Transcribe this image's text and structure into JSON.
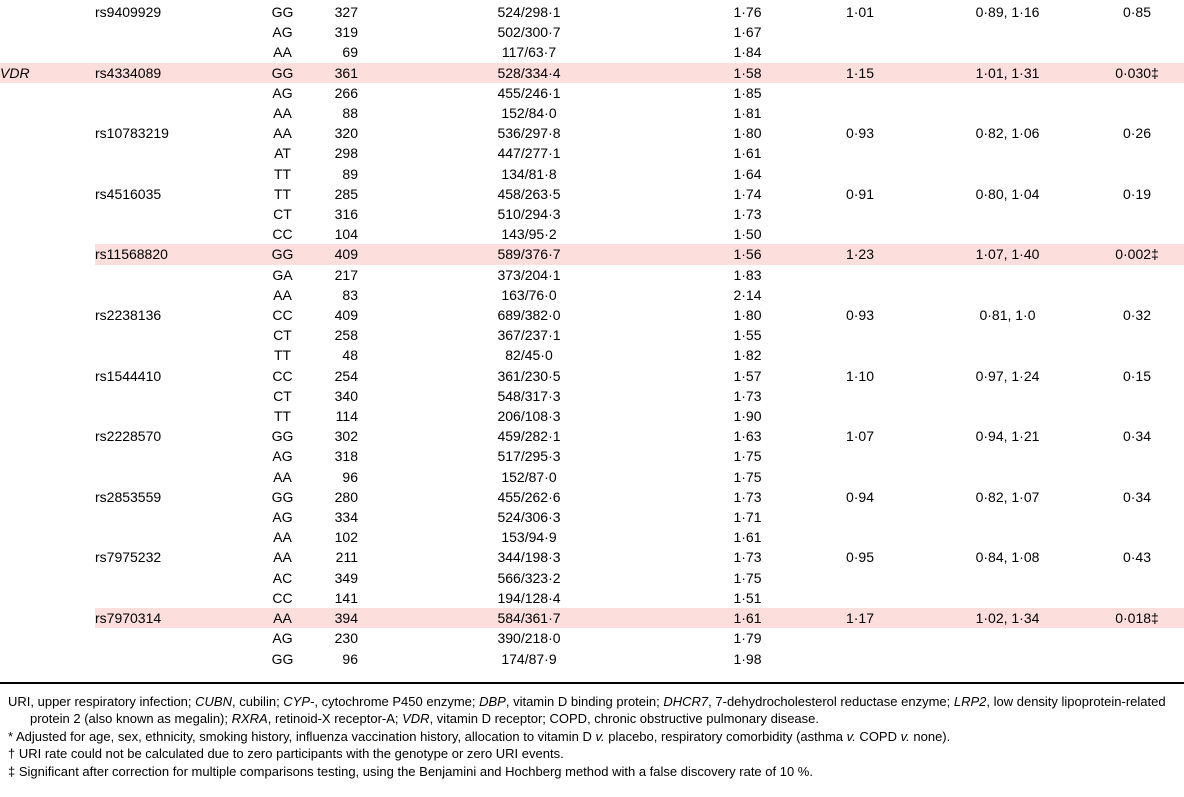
{
  "page": {
    "background": "#ffffff",
    "text_color": "#000000"
  },
  "table": {
    "highlight_color": "#fcdedd",
    "rows": [
      {
        "gene": "",
        "snp": "rs9409929",
        "genotype": "GG",
        "n": "327",
        "events_py": "524/298·1",
        "rate": "1·76",
        "irr": "1·01",
        "ci": "0·89, 1·16",
        "p": "0·85",
        "highlight": false
      },
      {
        "gene": "",
        "snp": "",
        "genotype": "AG",
        "n": "319",
        "events_py": "502/300·7",
        "rate": "1·67",
        "irr": "",
        "ci": "",
        "p": "",
        "highlight": false
      },
      {
        "gene": "",
        "snp": "",
        "genotype": "AA",
        "n": "69",
        "events_py": "117/63·7",
        "rate": "1·84",
        "irr": "",
        "ci": "",
        "p": "",
        "highlight": false
      },
      {
        "gene": "VDR",
        "snp": "rs4334089",
        "genotype": "GG",
        "n": "361",
        "events_py": "528/334·4",
        "rate": "1·58",
        "irr": "1·15",
        "ci": "1·01, 1·31",
        "p": "0·030‡",
        "highlight": true
      },
      {
        "gene": "",
        "snp": "",
        "genotype": "AG",
        "n": "266",
        "events_py": "455/246·1",
        "rate": "1·85",
        "irr": "",
        "ci": "",
        "p": "",
        "highlight": false
      },
      {
        "gene": "",
        "snp": "",
        "genotype": "AA",
        "n": "88",
        "events_py": "152/84·0",
        "rate": "1·81",
        "irr": "",
        "ci": "",
        "p": "",
        "highlight": false
      },
      {
        "gene": "",
        "snp": "rs10783219",
        "genotype": "AA",
        "n": "320",
        "events_py": "536/297·8",
        "rate": "1·80",
        "irr": "0·93",
        "ci": "0·82, 1·06",
        "p": "0·26",
        "highlight": false
      },
      {
        "gene": "",
        "snp": "",
        "genotype": "AT",
        "n": "298",
        "events_py": "447/277·1",
        "rate": "1·61",
        "irr": "",
        "ci": "",
        "p": "",
        "highlight": false
      },
      {
        "gene": "",
        "snp": "",
        "genotype": "TT",
        "n": "89",
        "events_py": "134/81·8",
        "rate": "1·64",
        "irr": "",
        "ci": "",
        "p": "",
        "highlight": false
      },
      {
        "gene": "",
        "snp": "rs4516035",
        "genotype": "TT",
        "n": "285",
        "events_py": "458/263·5",
        "rate": "1·74",
        "irr": "0·91",
        "ci": "0·80, 1·04",
        "p": "0·19",
        "highlight": false
      },
      {
        "gene": "",
        "snp": "",
        "genotype": "CT",
        "n": "316",
        "events_py": "510/294·3",
        "rate": "1·73",
        "irr": "",
        "ci": "",
        "p": "",
        "highlight": false
      },
      {
        "gene": "",
        "snp": "",
        "genotype": "CC",
        "n": "104",
        "events_py": "143/95·2",
        "rate": "1·50",
        "irr": "",
        "ci": "",
        "p": "",
        "highlight": false
      },
      {
        "gene": "",
        "snp": "rs11568820",
        "genotype": "GG",
        "n": "409",
        "events_py": "589/376·7",
        "rate": "1·56",
        "irr": "1·23",
        "ci": "1·07, 1·40",
        "p": "0·002‡",
        "highlight": true
      },
      {
        "gene": "",
        "snp": "",
        "genotype": "GA",
        "n": "217",
        "events_py": "373/204·1",
        "rate": "1·83",
        "irr": "",
        "ci": "",
        "p": "",
        "highlight": false
      },
      {
        "gene": "",
        "snp": "",
        "genotype": "AA",
        "n": "83",
        "events_py": "163/76·0",
        "rate": "2·14",
        "irr": "",
        "ci": "",
        "p": "",
        "highlight": false
      },
      {
        "gene": "",
        "snp": "rs2238136",
        "genotype": "CC",
        "n": "409",
        "events_py": "689/382·0",
        "rate": "1·80",
        "irr": "0·93",
        "ci": "0·81, 1·0",
        "p": "0·32",
        "highlight": false
      },
      {
        "gene": "",
        "snp": "",
        "genotype": "CT",
        "n": "258",
        "events_py": "367/237·1",
        "rate": "1·55",
        "irr": "",
        "ci": "",
        "p": "",
        "highlight": false
      },
      {
        "gene": "",
        "snp": "",
        "genotype": "TT",
        "n": "48",
        "events_py": "82/45·0",
        "rate": "1·82",
        "irr": "",
        "ci": "",
        "p": "",
        "highlight": false
      },
      {
        "gene": "",
        "snp": "rs1544410",
        "genotype": "CC",
        "n": "254",
        "events_py": "361/230·5",
        "rate": "1·57",
        "irr": "1·10",
        "ci": "0·97, 1·24",
        "p": "0·15",
        "highlight": false
      },
      {
        "gene": "",
        "snp": "",
        "genotype": "CT",
        "n": "340",
        "events_py": "548/317·3",
        "rate": "1·73",
        "irr": "",
        "ci": "",
        "p": "",
        "highlight": false
      },
      {
        "gene": "",
        "snp": "",
        "genotype": "TT",
        "n": "114",
        "events_py": "206/108·3",
        "rate": "1·90",
        "irr": "",
        "ci": "",
        "p": "",
        "highlight": false
      },
      {
        "gene": "",
        "snp": "rs2228570",
        "genotype": "GG",
        "n": "302",
        "events_py": "459/282·1",
        "rate": "1·63",
        "irr": "1·07",
        "ci": "0·94, 1·21",
        "p": "0·34",
        "highlight": false
      },
      {
        "gene": "",
        "snp": "",
        "genotype": "AG",
        "n": "318",
        "events_py": "517/295·3",
        "rate": "1·75",
        "irr": "",
        "ci": "",
        "p": "",
        "highlight": false
      },
      {
        "gene": "",
        "snp": "",
        "genotype": "AA",
        "n": "96",
        "events_py": "152/87·0",
        "rate": "1·75",
        "irr": "",
        "ci": "",
        "p": "",
        "highlight": false
      },
      {
        "gene": "",
        "snp": "rs2853559",
        "genotype": "GG",
        "n": "280",
        "events_py": "455/262·6",
        "rate": "1·73",
        "irr": "0·94",
        "ci": "0·82, 1·07",
        "p": "0·34",
        "highlight": false
      },
      {
        "gene": "",
        "snp": "",
        "genotype": "AG",
        "n": "334",
        "events_py": "524/306·3",
        "rate": "1·71",
        "irr": "",
        "ci": "",
        "p": "",
        "highlight": false
      },
      {
        "gene": "",
        "snp": "",
        "genotype": "AA",
        "n": "102",
        "events_py": "153/94·9",
        "rate": "1·61",
        "irr": "",
        "ci": "",
        "p": "",
        "highlight": false
      },
      {
        "gene": "",
        "snp": "rs7975232",
        "genotype": "AA",
        "n": "211",
        "events_py": "344/198·3",
        "rate": "1·73",
        "irr": "0·95",
        "ci": "0·84, 1·08",
        "p": "0·43",
        "highlight": false
      },
      {
        "gene": "",
        "snp": "",
        "genotype": "AC",
        "n": "349",
        "events_py": "566/323·2",
        "rate": "1·75",
        "irr": "",
        "ci": "",
        "p": "",
        "highlight": false
      },
      {
        "gene": "",
        "snp": "",
        "genotype": "CC",
        "n": "141",
        "events_py": "194/128·4",
        "rate": "1·51",
        "irr": "",
        "ci": "",
        "p": "",
        "highlight": false
      },
      {
        "gene": "",
        "snp": "rs7970314",
        "genotype": "AA",
        "n": "394",
        "events_py": "584/361·7",
        "rate": "1·61",
        "irr": "1·17",
        "ci": "1·02, 1·34",
        "p": "0·018‡",
        "highlight": true
      },
      {
        "gene": "",
        "snp": "",
        "genotype": "AG",
        "n": "230",
        "events_py": "390/218·0",
        "rate": "1·79",
        "irr": "",
        "ci": "",
        "p": "",
        "highlight": false
      },
      {
        "gene": "",
        "snp": "",
        "genotype": "GG",
        "n": "96",
        "events_py": "174/87·9",
        "rate": "1·98",
        "irr": "",
        "ci": "",
        "p": "",
        "highlight": false
      }
    ]
  },
  "footnotes": [
    {
      "segments": [
        {
          "t": "URI, upper respiratory infection; "
        },
        {
          "t": "CUBN",
          "i": true
        },
        {
          "t": ", cubilin; "
        },
        {
          "t": "CYP-",
          "i": true
        },
        {
          "t": ", cytochrome P450 enzyme; "
        },
        {
          "t": "DBP",
          "i": true
        },
        {
          "t": ", vitamin D binding protein; "
        },
        {
          "t": "DHCR7",
          "i": true
        },
        {
          "t": ", 7-dehydrocholesterol reductase enzyme; "
        },
        {
          "t": "LRP2",
          "i": true
        },
        {
          "t": ", low density lipoprotein-related protein 2 (also known as megalin); "
        },
        {
          "t": "RXRA",
          "i": true
        },
        {
          "t": ", retinoid-X receptor-A; "
        },
        {
          "t": "VDR",
          "i": true
        },
        {
          "t": ", vitamin D receptor; COPD, chronic obstructive pulmonary disease."
        }
      ]
    },
    {
      "segments": [
        {
          "t": "* Adjusted for age, sex, ethnicity, smoking history, influenza vaccination history, allocation to vitamin D "
        },
        {
          "t": "v.",
          "i": true
        },
        {
          "t": " placebo, respiratory comorbidity (asthma "
        },
        {
          "t": "v.",
          "i": true
        },
        {
          "t": " COPD "
        },
        {
          "t": "v.",
          "i": true
        },
        {
          "t": " none)."
        }
      ]
    },
    {
      "segments": [
        {
          "t": "† URI rate could not be calculated due to zero participants with the genotype or zero URI events."
        }
      ]
    },
    {
      "segments": [
        {
          "t": "‡ Significant after correction for multiple comparisons testing, using the Benjamini and Hochberg method with a false discovery rate of 10 %."
        }
      ]
    }
  ]
}
